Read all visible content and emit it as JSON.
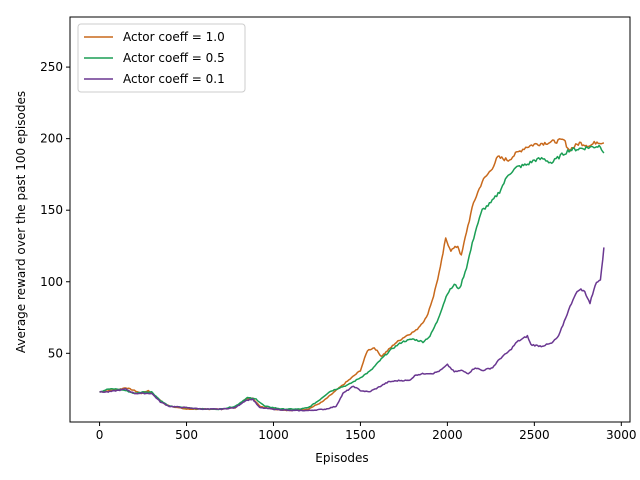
{
  "chart_data": {
    "type": "line",
    "xlabel": "Episodes",
    "ylabel": "Average reward over the past 100 episodes",
    "xlim": [
      -170,
      3050
    ],
    "ylim": [
      2,
      285
    ],
    "xticks": [
      0,
      500,
      1000,
      1500,
      2000,
      2500,
      3000
    ],
    "yticks": [
      50,
      100,
      150,
      200,
      250
    ],
    "grid": false,
    "legend": "top-left",
    "series": [
      {
        "name": "Actor coeff = 1.0",
        "color": "#c8691c",
        "points": [
          [
            0,
            23
          ],
          [
            60,
            24
          ],
          [
            120,
            25
          ],
          [
            150,
            26
          ],
          [
            200,
            24
          ],
          [
            240,
            22
          ],
          [
            280,
            24
          ],
          [
            320,
            20
          ],
          [
            380,
            14
          ],
          [
            450,
            12
          ],
          [
            500,
            11
          ],
          [
            600,
            11
          ],
          [
            700,
            11
          ],
          [
            780,
            12
          ],
          [
            840,
            18
          ],
          [
            880,
            19
          ],
          [
            920,
            13
          ],
          [
            1000,
            11
          ],
          [
            1100,
            10
          ],
          [
            1200,
            11
          ],
          [
            1280,
            16
          ],
          [
            1340,
            22
          ],
          [
            1400,
            28
          ],
          [
            1450,
            33
          ],
          [
            1500,
            38
          ],
          [
            1540,
            52
          ],
          [
            1580,
            54
          ],
          [
            1620,
            48
          ],
          [
            1640,
            50
          ],
          [
            1700,
            57
          ],
          [
            1760,
            62
          ],
          [
            1820,
            66
          ],
          [
            1880,
            75
          ],
          [
            1920,
            90
          ],
          [
            1960,
            110
          ],
          [
            1990,
            130
          ],
          [
            2020,
            122
          ],
          [
            2060,
            125
          ],
          [
            2080,
            118
          ],
          [
            2110,
            135
          ],
          [
            2150,
            155
          ],
          [
            2200,
            170
          ],
          [
            2250,
            178
          ],
          [
            2290,
            187
          ],
          [
            2350,
            185
          ],
          [
            2400,
            190
          ],
          [
            2450,
            194
          ],
          [
            2500,
            196
          ],
          [
            2560,
            197
          ],
          [
            2620,
            198
          ],
          [
            2670,
            199
          ],
          [
            2700,
            192
          ],
          [
            2760,
            197
          ],
          [
            2820,
            195
          ],
          [
            2860,
            198
          ],
          [
            2900,
            197
          ]
        ]
      },
      {
        "name": "Actor coeff = 0.5",
        "color": "#1b9e55",
        "points": [
          [
            0,
            23
          ],
          [
            50,
            25
          ],
          [
            100,
            25
          ],
          [
            150,
            24
          ],
          [
            200,
            22
          ],
          [
            250,
            23
          ],
          [
            300,
            23
          ],
          [
            350,
            17
          ],
          [
            400,
            13
          ],
          [
            500,
            12
          ],
          [
            600,
            11
          ],
          [
            700,
            11
          ],
          [
            780,
            13
          ],
          [
            850,
            19
          ],
          [
            900,
            18
          ],
          [
            950,
            13
          ],
          [
            1050,
            11
          ],
          [
            1150,
            11
          ],
          [
            1200,
            12
          ],
          [
            1260,
            17
          ],
          [
            1320,
            23
          ],
          [
            1380,
            26
          ],
          [
            1430,
            28
          ],
          [
            1500,
            33
          ],
          [
            1560,
            38
          ],
          [
            1620,
            46
          ],
          [
            1680,
            53
          ],
          [
            1740,
            58
          ],
          [
            1800,
            60
          ],
          [
            1860,
            58
          ],
          [
            1900,
            62
          ],
          [
            1940,
            72
          ],
          [
            2000,
            92
          ],
          [
            2040,
            98
          ],
          [
            2070,
            95
          ],
          [
            2110,
            110
          ],
          [
            2160,
            135
          ],
          [
            2200,
            150
          ],
          [
            2250,
            155
          ],
          [
            2300,
            163
          ],
          [
            2350,
            175
          ],
          [
            2400,
            180
          ],
          [
            2460,
            182
          ],
          [
            2500,
            185
          ],
          [
            2550,
            186
          ],
          [
            2600,
            183
          ],
          [
            2650,
            188
          ],
          [
            2700,
            192
          ],
          [
            2760,
            193
          ],
          [
            2820,
            194
          ],
          [
            2880,
            195
          ],
          [
            2900,
            190
          ]
        ]
      },
      {
        "name": "Actor coeff = 0.1",
        "color": "#6a3791",
        "points": [
          [
            0,
            23
          ],
          [
            50,
            23
          ],
          [
            100,
            24
          ],
          [
            150,
            25
          ],
          [
            200,
            22
          ],
          [
            250,
            22
          ],
          [
            300,
            22
          ],
          [
            350,
            16
          ],
          [
            400,
            13
          ],
          [
            500,
            12
          ],
          [
            600,
            11
          ],
          [
            700,
            11
          ],
          [
            780,
            12
          ],
          [
            840,
            17
          ],
          [
            880,
            18
          ],
          [
            920,
            12
          ],
          [
            1000,
            11
          ],
          [
            1100,
            10
          ],
          [
            1200,
            10
          ],
          [
            1300,
            11
          ],
          [
            1360,
            13
          ],
          [
            1400,
            22
          ],
          [
            1460,
            27
          ],
          [
            1500,
            24
          ],
          [
            1550,
            23
          ],
          [
            1600,
            26
          ],
          [
            1660,
            30
          ],
          [
            1720,
            31
          ],
          [
            1780,
            31
          ],
          [
            1820,
            35
          ],
          [
            1880,
            36
          ],
          [
            1920,
            36
          ],
          [
            1960,
            38
          ],
          [
            2000,
            42
          ],
          [
            2040,
            37
          ],
          [
            2080,
            38
          ],
          [
            2120,
            36
          ],
          [
            2160,
            40
          ],
          [
            2200,
            38
          ],
          [
            2260,
            40
          ],
          [
            2300,
            46
          ],
          [
            2360,
            52
          ],
          [
            2400,
            58
          ],
          [
            2460,
            62
          ],
          [
            2480,
            56
          ],
          [
            2540,
            55
          ],
          [
            2600,
            57
          ],
          [
            2640,
            62
          ],
          [
            2680,
            75
          ],
          [
            2730,
            90
          ],
          [
            2760,
            95
          ],
          [
            2790,
            93
          ],
          [
            2820,
            85
          ],
          [
            2850,
            98
          ],
          [
            2880,
            102
          ],
          [
            2900,
            124
          ]
        ]
      }
    ]
  }
}
